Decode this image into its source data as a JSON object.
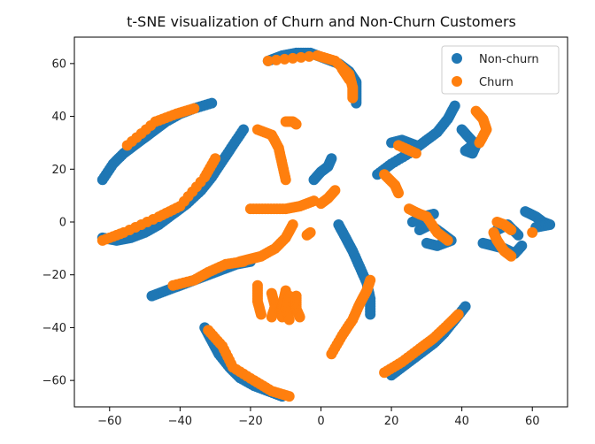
{
  "chart_data": {
    "type": "scatter",
    "title": "t-SNE visualization of Churn and Non-Churn Customers",
    "xlabel": "",
    "ylabel": "",
    "xlim": [
      -70,
      70
    ],
    "ylim": [
      -70,
      70
    ],
    "xticks": [
      -60,
      -40,
      -20,
      0,
      20,
      40,
      60
    ],
    "yticks": [
      -60,
      -40,
      -20,
      0,
      20,
      40,
      60
    ],
    "tick_labels": {
      "x": [
        "−60",
        "−40",
        "−20",
        "0",
        "20",
        "40",
        "60"
      ],
      "y": [
        "−60",
        "−40",
        "−20",
        "0",
        "20",
        "40",
        "60"
      ]
    },
    "grid": false,
    "legend": "top-right",
    "series": [
      {
        "name": "Non-churn",
        "color": "#1f77b4",
        "segments": [
          [
            [
              -62,
              16
            ],
            [
              -59,
              22
            ],
            [
              -56,
              26
            ],
            [
              -53,
              29
            ],
            [
              -50,
              32
            ],
            [
              -47,
              35
            ],
            [
              -44,
              38
            ],
            [
              -40,
              41
            ],
            [
              -36,
              43
            ],
            [
              -31,
              45
            ]
          ],
          [
            [
              -62,
              -6
            ],
            [
              -58,
              -7
            ],
            [
              -54,
              -6
            ],
            [
              -50,
              -4
            ],
            [
              -46,
              -1
            ],
            [
              -42,
              3
            ],
            [
              -38,
              7
            ],
            [
              -34,
              12
            ],
            [
              -31,
              17
            ],
            [
              -28,
              23
            ],
            [
              -25,
              29
            ],
            [
              -22,
              35
            ]
          ],
          [
            [
              -48,
              -28
            ],
            [
              -44,
              -26
            ],
            [
              -40,
              -24
            ],
            [
              -36,
              -22
            ],
            [
              -32,
              -20
            ],
            [
              -28,
              -18
            ],
            [
              -24,
              -16
            ],
            [
              -20,
              -15
            ]
          ],
          [
            [
              -33,
              -40
            ],
            [
              -31,
              -45
            ],
            [
              -29,
              -50
            ],
            [
              -26,
              -55
            ],
            [
              -23,
              -59
            ],
            [
              -19,
              -62
            ],
            [
              -15,
              -64
            ],
            [
              -11,
              -66
            ]
          ],
          [
            [
              -15,
              61
            ],
            [
              -11,
              63
            ],
            [
              -7,
              64
            ],
            [
              -3,
              64
            ],
            [
              1,
              62
            ],
            [
              5,
              60
            ],
            [
              8,
              57
            ],
            [
              10,
              53
            ],
            [
              10,
              49
            ],
            [
              10,
              45
            ]
          ],
          [
            [
              -2,
              16
            ],
            [
              0,
              19
            ],
            [
              2,
              21
            ],
            [
              3,
              24
            ]
          ],
          [
            [
              5,
              -1
            ],
            [
              7,
              -6
            ],
            [
              9,
              -11
            ],
            [
              11,
              -17
            ],
            [
              13,
              -23
            ],
            [
              14,
              -29
            ],
            [
              14,
              -35
            ]
          ],
          [
            [
              20,
              -58
            ],
            [
              24,
              -54
            ],
            [
              28,
              -50
            ],
            [
              32,
              -46
            ],
            [
              35,
              -42
            ],
            [
              38,
              -37
            ],
            [
              41,
              -32
            ]
          ],
          [
            [
              16,
              18
            ],
            [
              20,
              22
            ],
            [
              25,
              26
            ],
            [
              29,
              30
            ],
            [
              33,
              34
            ],
            [
              36,
              39
            ],
            [
              38,
              44
            ]
          ],
          [
            [
              20,
              30
            ],
            [
              23,
              31
            ],
            [
              27,
              29
            ]
          ],
          [
            [
              40,
              35
            ],
            [
              42,
              32
            ],
            [
              44,
              29
            ],
            [
              43,
              26
            ],
            [
              41,
              27
            ],
            [
              44,
              30
            ]
          ],
          [
            [
              28,
              -3
            ],
            [
              31,
              -1
            ],
            [
              34,
              -4
            ],
            [
              37,
              -7
            ],
            [
              33,
              -9
            ],
            [
              30,
              -8
            ]
          ],
          [
            [
              26,
              0
            ],
            [
              29,
              2
            ],
            [
              32,
              3
            ]
          ],
          [
            [
              46,
              -8
            ],
            [
              49,
              -9
            ],
            [
              52,
              -10
            ],
            [
              55,
              -12
            ],
            [
              57,
              -9
            ]
          ],
          [
            [
              50,
              -3
            ],
            [
              53,
              -1
            ],
            [
              56,
              -5
            ]
          ],
          [
            [
              58,
              4
            ],
            [
              61,
              2
            ],
            [
              63,
              0
            ],
            [
              65,
              -1
            ],
            [
              61,
              -2
            ]
          ]
        ]
      },
      {
        "name": "Churn",
        "color": "#ff7f0e",
        "segments": [
          [
            [
              -62,
              -7
            ],
            [
              -56,
              -4
            ],
            [
              -46,
              2
            ],
            [
              -40,
              6
            ],
            [
              -33,
              17
            ],
            [
              -30,
              24
            ]
          ],
          [
            [
              -55,
              29
            ],
            [
              -47,
              38
            ],
            [
              -41,
              41
            ],
            [
              -36,
              43
            ]
          ],
          [
            [
              -42,
              -24
            ],
            [
              -36,
              -22
            ],
            [
              -32,
              -19
            ],
            [
              -27,
              -16
            ],
            [
              -22,
              -15
            ]
          ],
          [
            [
              -32,
              -41
            ],
            [
              -28,
              -47
            ],
            [
              -25,
              -55
            ],
            [
              -19,
              -60
            ],
            [
              -14,
              -64
            ],
            [
              -9,
              -66
            ]
          ],
          [
            [
              -15,
              61
            ],
            [
              -1,
              63
            ],
            [
              4,
              61
            ],
            [
              8,
              56
            ],
            [
              9,
              51
            ],
            [
              9,
              47
            ]
          ],
          [
            [
              -20,
              5
            ],
            [
              -15,
              5
            ],
            [
              -10,
              5
            ],
            [
              -6,
              6
            ],
            [
              -2,
              8
            ]
          ],
          [
            [
              -18,
              35
            ],
            [
              -14,
              33
            ],
            [
              -12,
              28
            ],
            [
              -11,
              22
            ],
            [
              -10,
              16
            ]
          ],
          [
            [
              -10,
              38
            ],
            [
              -8,
              38
            ],
            [
              -7,
              37
            ]
          ],
          [
            [
              -8,
              -1
            ],
            [
              -10,
              -6
            ],
            [
              -13,
              -10
            ],
            [
              -17,
              -13
            ],
            [
              -20,
              -14
            ],
            [
              -23,
              -15
            ]
          ],
          [
            [
              -18,
              -24
            ],
            [
              -18,
              -30
            ],
            [
              -17,
              -35
            ]
          ],
          [
            [
              -14,
              -27
            ],
            [
              -13,
              -32
            ],
            [
              -14,
              -36
            ]
          ],
          [
            [
              -10,
              -26
            ],
            [
              -11,
              -32
            ],
            [
              -11,
              -36
            ]
          ],
          [
            [
              -9,
              -28
            ],
            [
              -10,
              -33
            ],
            [
              -9,
              -37
            ]
          ],
          [
            [
              -7,
              -28
            ],
            [
              -7,
              -33
            ],
            [
              -6,
              -36
            ]
          ],
          [
            [
              -4,
              -5
            ],
            [
              -3,
              -4
            ]
          ],
          [
            [
              0,
              7
            ],
            [
              2,
              9
            ],
            [
              4,
              12
            ]
          ],
          [
            [
              3,
              -50
            ],
            [
              6,
              -43
            ],
            [
              9,
              -37
            ],
            [
              11,
              -31
            ],
            [
              13,
              -26
            ],
            [
              14,
              -22
            ]
          ],
          [
            [
              18,
              -57
            ],
            [
              23,
              -53
            ],
            [
              28,
              -48
            ],
            [
              32,
              -44
            ],
            [
              36,
              -39
            ],
            [
              39,
              -35
            ]
          ],
          [
            [
              18,
              18
            ],
            [
              21,
              14
            ],
            [
              22,
              11
            ]
          ],
          [
            [
              22,
              29
            ],
            [
              27,
              26
            ]
          ],
          [
            [
              25,
              5
            ],
            [
              28,
              3
            ],
            [
              30,
              2
            ],
            [
              33,
              -4
            ],
            [
              36,
              -7
            ]
          ],
          [
            [
              44,
              42
            ],
            [
              46,
              39
            ],
            [
              47,
              35
            ],
            [
              45,
              30
            ]
          ],
          [
            [
              50,
              0
            ],
            [
              52,
              -1
            ],
            [
              54,
              -3
            ]
          ],
          [
            [
              49,
              -4
            ],
            [
              50,
              -7
            ],
            [
              52,
              -11
            ],
            [
              54,
              -13
            ]
          ],
          [
            [
              60,
              -4
            ]
          ],
          [
            [
              6,
              58
            ],
            [
              8,
              54
            ]
          ]
        ]
      }
    ]
  }
}
